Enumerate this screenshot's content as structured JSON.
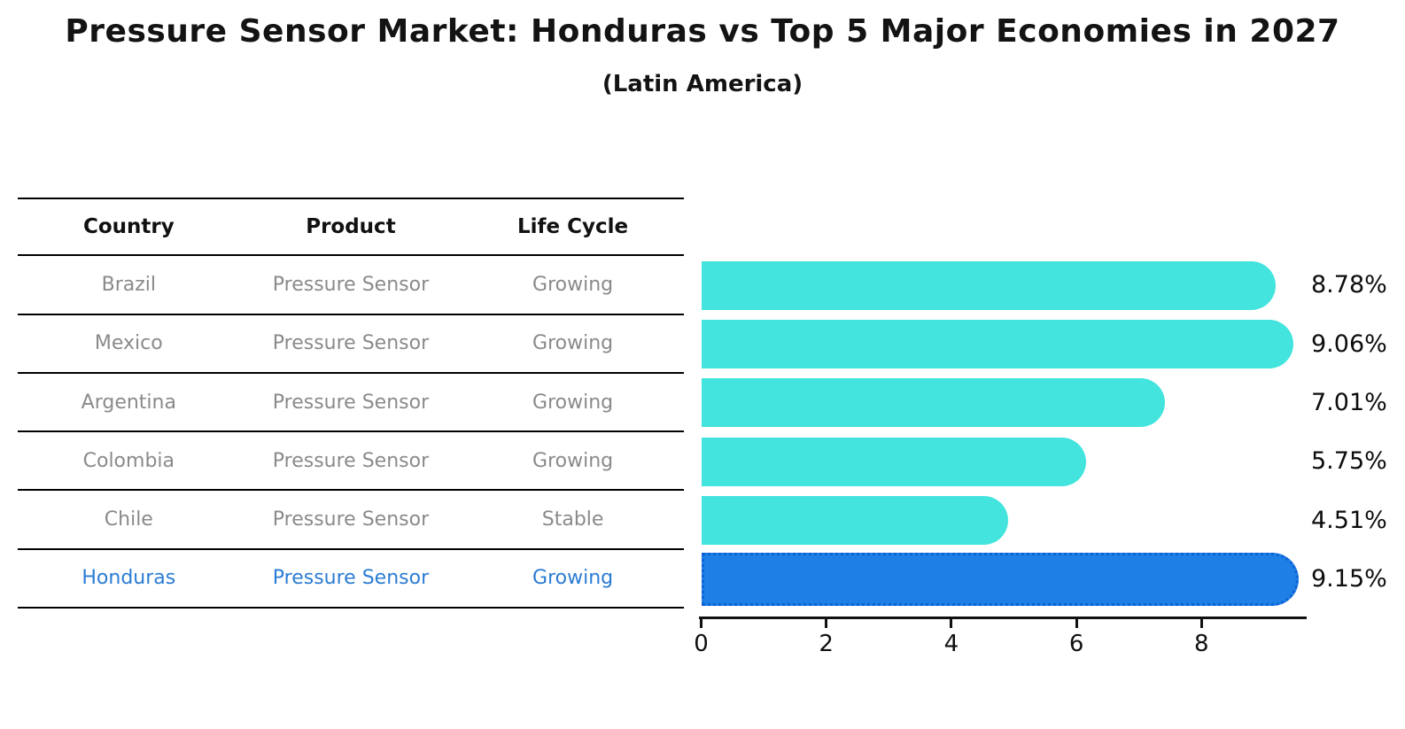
{
  "title": "Pressure Sensor Market: Honduras vs Top 5 Major Economies in 2027",
  "subtitle": "(Latin America)",
  "table": {
    "headers": [
      "Country",
      "Product",
      "Life Cycle"
    ],
    "rows": [
      {
        "country": "Brazil",
        "product": "Pressure Sensor",
        "life_cycle": "Growing",
        "highlighted": false
      },
      {
        "country": "Mexico",
        "product": "Pressure Sensor",
        "life_cycle": "Growing",
        "highlighted": false
      },
      {
        "country": "Argentina",
        "product": "Pressure Sensor",
        "life_cycle": "Growing",
        "highlighted": false
      },
      {
        "country": "Colombia",
        "product": "Pressure Sensor",
        "life_cycle": "Growing",
        "highlighted": false
      },
      {
        "country": "Chile",
        "product": "Pressure Sensor",
        "life_cycle": "Stable",
        "highlighted": false
      },
      {
        "country": "Honduras",
        "product": "Pressure Sensor",
        "life_cycle": "Growing",
        "highlighted": true
      }
    ]
  },
  "chart_data": {
    "type": "bar",
    "orientation": "horizontal",
    "title": "Pressure Sensor Market: Honduras vs Top 5 Major Economies in 2027",
    "subtitle": "(Latin America)",
    "categories": [
      "Brazil",
      "Mexico",
      "Argentina",
      "Colombia",
      "Chile",
      "Honduras"
    ],
    "values": [
      8.78,
      9.06,
      7.01,
      5.75,
      4.51,
      9.15
    ],
    "value_labels": [
      "8.78%",
      "9.06%",
      "7.01%",
      "5.75%",
      "4.51%",
      "9.15%"
    ],
    "highlight_index": 5,
    "xlabel": "",
    "ylabel": "",
    "xlim": [
      0,
      9.67
    ],
    "xticks": [
      0,
      2,
      4,
      6,
      8
    ],
    "grid": false,
    "legend": false
  },
  "colors": {
    "bar": "#42E4DD",
    "highlight_bar": "#1E7FE5",
    "highlight_border": "#0c62d6",
    "highlight_text": "#2b7cd4",
    "table_text": "#8a8a8a",
    "header_text": "#111111",
    "axis": "#111111",
    "value_label_text": "#0d0d0d"
  }
}
